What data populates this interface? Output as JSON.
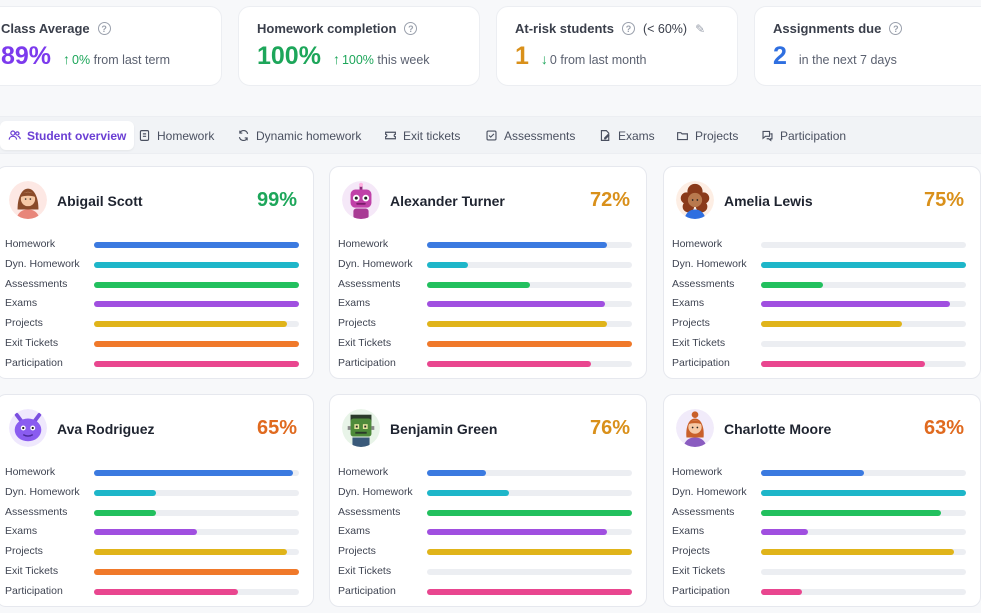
{
  "stats": [
    {
      "title": "Class Average",
      "value": "89%",
      "value_color": "#7c3aed",
      "arrow": "↑",
      "accent": "0%",
      "trend_text": "from last term",
      "note": "",
      "has_edit": false
    },
    {
      "title": "Homework completion",
      "value": "100%",
      "value_color": "#1da65a",
      "arrow": "↑",
      "accent": "100%",
      "trend_text": "this week",
      "note": "",
      "has_edit": false
    },
    {
      "title": "At-risk students",
      "value": "1",
      "value_color": "#d9901a",
      "arrow": "↓",
      "accent": "0",
      "trend_text": "from last month",
      "note": "(< 60%)",
      "has_edit": true
    },
    {
      "title": "Assignments due",
      "value": "2",
      "value_color": "#2f6fe0",
      "arrow": "",
      "accent": "",
      "trend_text": "in the next 7 days",
      "note": "",
      "has_edit": false
    }
  ],
  "tabs": [
    {
      "label": "Student overview",
      "icon": "users-icon",
      "active": true
    },
    {
      "label": "Homework",
      "icon": "notebook-icon",
      "active": false
    },
    {
      "label": "Dynamic homework",
      "icon": "refresh-icon",
      "active": false
    },
    {
      "label": "Exit tickets",
      "icon": "ticket-icon",
      "active": false
    },
    {
      "label": "Assessments",
      "icon": "checkbox-icon",
      "active": false
    },
    {
      "label": "Exams",
      "icon": "pen-icon",
      "active": false
    },
    {
      "label": "Projects",
      "icon": "folder-icon",
      "active": false
    },
    {
      "label": "Participation",
      "icon": "chat-icon",
      "active": false
    }
  ],
  "metric_labels": [
    "Homework",
    "Dyn. Homework",
    "Assessments",
    "Exams",
    "Projects",
    "Exit Tickets",
    "Participation"
  ],
  "metric_colors": [
    "#3b7ae0",
    "#1eb6c9",
    "#22c05e",
    "#a04fe0",
    "#e0b41a",
    "#f0792a",
    "#e9468f"
  ],
  "students": [
    {
      "name": "Abigail Scott",
      "score": "99%",
      "score_color": "#1da65a",
      "avatar": "girl-avatar-icon",
      "values": [
        1.0,
        1.0,
        1.0,
        1.0,
        0.94,
        1.0,
        1.0
      ]
    },
    {
      "name": "Alexander Turner",
      "score": "72%",
      "score_color": "#d9901a",
      "avatar": "robot-avatar-icon",
      "values": [
        0.88,
        0.2,
        0.5,
        0.87,
        0.88,
        1.0,
        0.8
      ]
    },
    {
      "name": "Amelia Lewis",
      "score": "75%",
      "score_color": "#d9901a",
      "avatar": "curly-girl-avatar-icon",
      "values": [
        0.0,
        1.0,
        0.3,
        0.92,
        0.69,
        0.0,
        0.8
      ]
    },
    {
      "name": "Ava Rodriguez",
      "score": "65%",
      "score_color": "#e06a1f",
      "avatar": "monster-avatar-icon",
      "values": [
        0.97,
        0.3,
        0.3,
        0.5,
        0.94,
        1.0,
        0.7
      ]
    },
    {
      "name": "Benjamin Green",
      "score": "76%",
      "score_color": "#d9901a",
      "avatar": "frank-avatar-icon",
      "values": [
        0.29,
        0.4,
        1.0,
        0.88,
        1.0,
        0.0,
        1.0
      ]
    },
    {
      "name": "Charlotte Moore",
      "score": "63%",
      "score_color": "#e06a1f",
      "avatar": "redhead-avatar-icon",
      "values": [
        0.5,
        1.0,
        0.88,
        0.23,
        0.94,
        0.0,
        0.2
      ]
    }
  ]
}
